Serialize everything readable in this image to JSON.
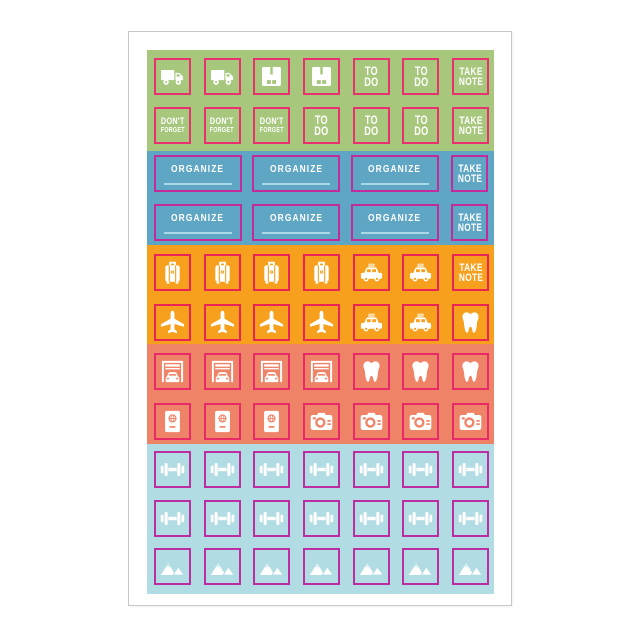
{
  "sheet": {
    "background": "#ffffff",
    "edge_color": "#c6c6c6",
    "bands": [
      {
        "name": "band-moving-green",
        "color": "#a7c77d",
        "sticker_border": "#e8316e",
        "rows": [
          [
            {
              "type": "icon",
              "icon": "truck"
            },
            {
              "type": "icon",
              "icon": "truck"
            },
            {
              "type": "icon",
              "icon": "moving-box"
            },
            {
              "type": "icon",
              "icon": "moving-box"
            },
            {
              "type": "text",
              "variant": "todo",
              "lines": [
                "TO",
                "DO"
              ]
            },
            {
              "type": "text",
              "variant": "todo",
              "lines": [
                "TO",
                "DO"
              ]
            },
            {
              "type": "text",
              "variant": "takenote",
              "lines": [
                "TAKE",
                "NOTE"
              ]
            }
          ],
          [
            {
              "type": "text",
              "variant": "dontforget",
              "lines": [
                "DON'T",
                "FORGET"
              ]
            },
            {
              "type": "text",
              "variant": "dontforget",
              "lines": [
                "DON'T",
                "FORGET"
              ]
            },
            {
              "type": "text",
              "variant": "dontforget",
              "lines": [
                "DON'T",
                "FORGET"
              ]
            },
            {
              "type": "text",
              "variant": "todo",
              "lines": [
                "TO",
                "DO"
              ]
            },
            {
              "type": "text",
              "variant": "todo",
              "lines": [
                "TO",
                "DO"
              ]
            },
            {
              "type": "text",
              "variant": "todo",
              "lines": [
                "TO",
                "DO"
              ]
            },
            {
              "type": "text",
              "variant": "takenote",
              "lines": [
                "TAKE",
                "NOTE"
              ]
            }
          ]
        ]
      },
      {
        "name": "band-organize-blue",
        "color": "#5fa6c5",
        "sticker_border": "#c32b9c",
        "rows": [
          [
            {
              "type": "organize",
              "label": "ORGANIZE",
              "line_color": "#a9d9e6"
            },
            {
              "type": "organize",
              "label": "ORGANIZE",
              "line_color": "#a9d9e6"
            },
            {
              "type": "organize",
              "label": "ORGANIZE",
              "line_color": "#a9d9e6"
            },
            {
              "type": "text",
              "variant": "takenote",
              "lines": [
                "TAKE",
                "NOTE"
              ]
            }
          ],
          [
            {
              "type": "organize",
              "label": "ORGANIZE",
              "line_color": "#a9d9e6"
            },
            {
              "type": "organize",
              "label": "ORGANIZE",
              "line_color": "#a9d9e6"
            },
            {
              "type": "organize",
              "label": "ORGANIZE",
              "line_color": "#a9d9e6"
            },
            {
              "type": "text",
              "variant": "takenote",
              "lines": [
                "TAKE",
                "NOTE"
              ]
            }
          ]
        ]
      },
      {
        "name": "band-travel-orange",
        "color": "#f7a01d",
        "sticker_border": "#ea2555",
        "rows": [
          [
            {
              "type": "icon",
              "icon": "suitcase"
            },
            {
              "type": "icon",
              "icon": "suitcase"
            },
            {
              "type": "icon",
              "icon": "suitcase"
            },
            {
              "type": "icon",
              "icon": "suitcase"
            },
            {
              "type": "icon",
              "icon": "taxi"
            },
            {
              "type": "icon",
              "icon": "taxi"
            },
            {
              "type": "text",
              "variant": "takenote",
              "lines": [
                "TAKE",
                "NOTE"
              ]
            }
          ],
          [
            {
              "type": "icon",
              "icon": "airplane"
            },
            {
              "type": "icon",
              "icon": "airplane"
            },
            {
              "type": "icon",
              "icon": "airplane"
            },
            {
              "type": "icon",
              "icon": "airplane"
            },
            {
              "type": "icon",
              "icon": "taxi"
            },
            {
              "type": "icon",
              "icon": "taxi"
            },
            {
              "type": "icon",
              "icon": "tooth"
            }
          ]
        ]
      },
      {
        "name": "band-errands-coral",
        "color": "#ef8367",
        "sticker_border": "#e92a68",
        "rows": [
          [
            {
              "type": "icon",
              "icon": "garage"
            },
            {
              "type": "icon",
              "icon": "garage"
            },
            {
              "type": "icon",
              "icon": "garage"
            },
            {
              "type": "icon",
              "icon": "garage"
            },
            {
              "type": "icon",
              "icon": "tooth"
            },
            {
              "type": "icon",
              "icon": "tooth"
            },
            {
              "type": "icon",
              "icon": "tooth"
            }
          ],
          [
            {
              "type": "icon",
              "icon": "passport"
            },
            {
              "type": "icon",
              "icon": "passport"
            },
            {
              "type": "icon",
              "icon": "passport"
            },
            {
              "type": "icon",
              "icon": "camera"
            },
            {
              "type": "icon",
              "icon": "camera"
            },
            {
              "type": "icon",
              "icon": "camera"
            },
            {
              "type": "icon",
              "icon": "camera"
            }
          ]
        ]
      },
      {
        "name": "band-fitness-lightblue",
        "color": "#b2dce3",
        "sticker_border": "#bb2da0",
        "rows": [
          [
            {
              "type": "icon",
              "icon": "dumbbell"
            },
            {
              "type": "icon",
              "icon": "dumbbell"
            },
            {
              "type": "icon",
              "icon": "dumbbell"
            },
            {
              "type": "icon",
              "icon": "dumbbell"
            },
            {
              "type": "icon",
              "icon": "dumbbell"
            },
            {
              "type": "icon",
              "icon": "dumbbell"
            },
            {
              "type": "icon",
              "icon": "dumbbell"
            }
          ],
          [
            {
              "type": "icon",
              "icon": "dumbbell"
            },
            {
              "type": "icon",
              "icon": "dumbbell"
            },
            {
              "type": "icon",
              "icon": "dumbbell"
            },
            {
              "type": "icon",
              "icon": "dumbbell"
            },
            {
              "type": "icon",
              "icon": "dumbbell"
            },
            {
              "type": "icon",
              "icon": "dumbbell"
            },
            {
              "type": "icon",
              "icon": "dumbbell"
            }
          ],
          [
            {
              "type": "icon",
              "icon": "mountains"
            },
            {
              "type": "icon",
              "icon": "mountains"
            },
            {
              "type": "icon",
              "icon": "mountains"
            },
            {
              "type": "icon",
              "icon": "mountains"
            },
            {
              "type": "icon",
              "icon": "mountains"
            },
            {
              "type": "icon",
              "icon": "mountains"
            },
            {
              "type": "icon",
              "icon": "mountains"
            }
          ]
        ]
      }
    ]
  }
}
